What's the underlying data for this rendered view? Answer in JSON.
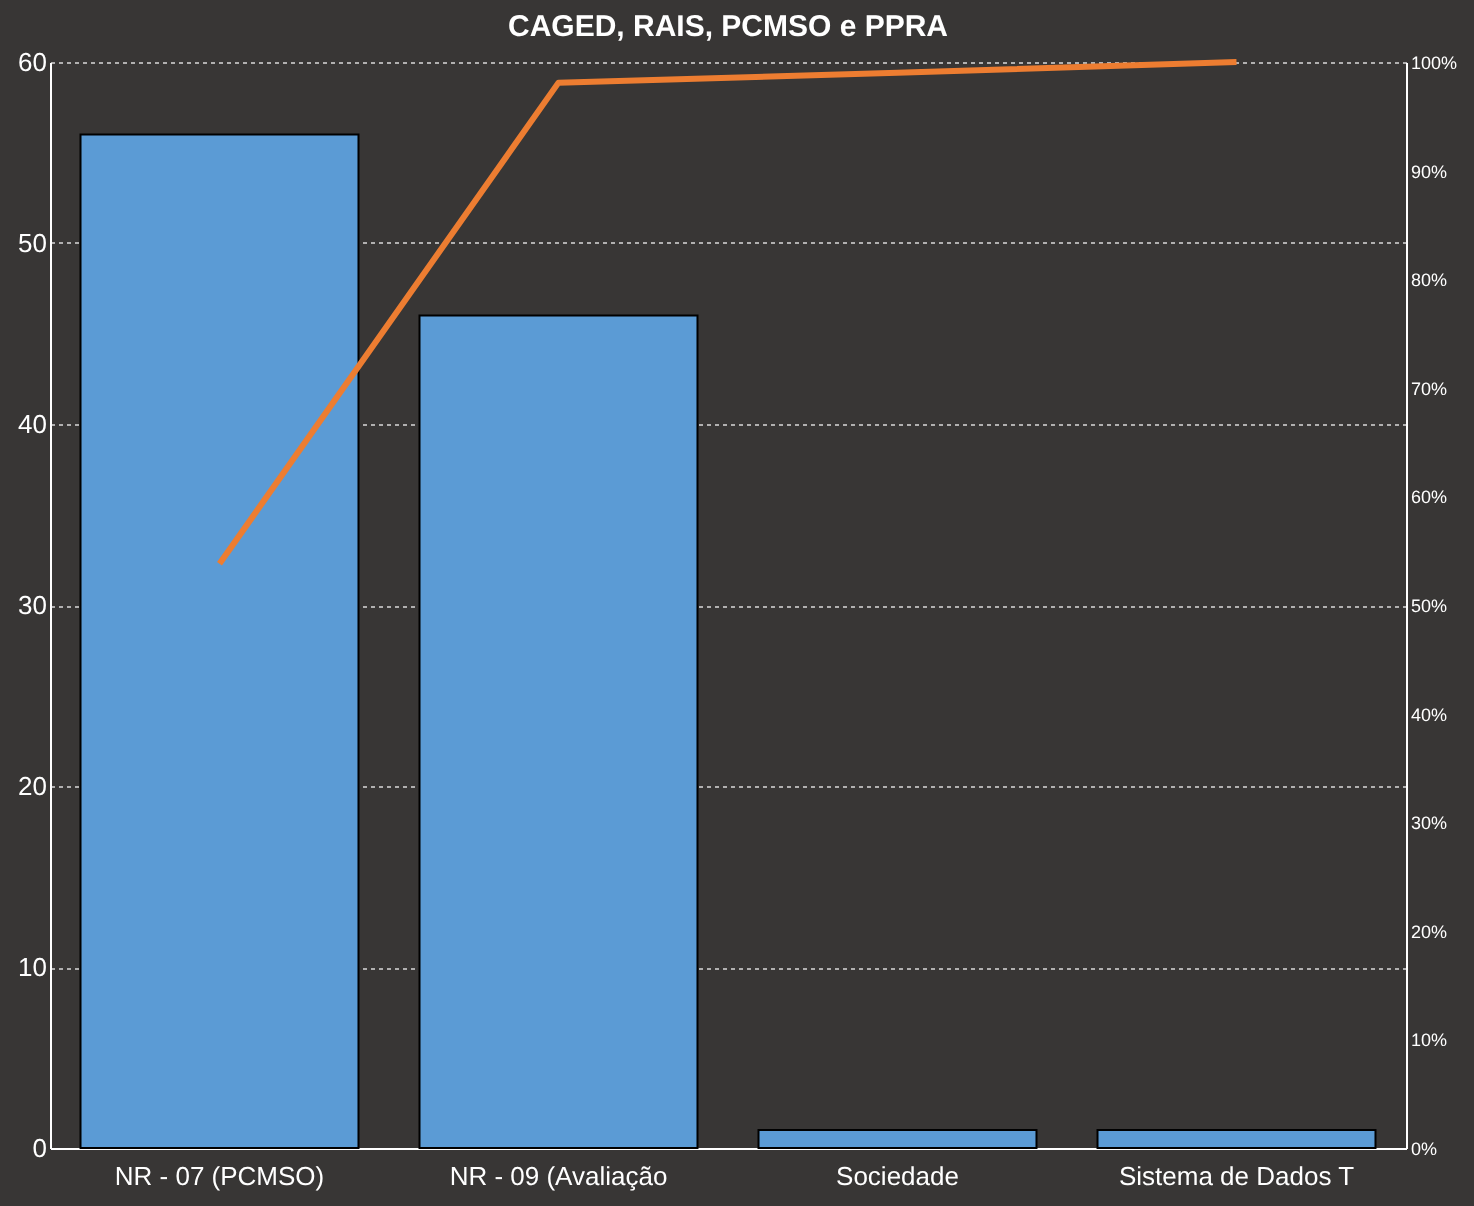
{
  "chart_data": {
    "type": "bar",
    "title": "CAGED, RAIS, PCMSO e PPRA",
    "categories": [
      "NR - 07 (PCMSO)",
      "NR - 09 (Avaliação",
      "Sociedade",
      "Sistema de Dados T"
    ],
    "series": [
      {
        "color": "#5b9bd5",
        "values": [
          56,
          46,
          1,
          1
        ]
      },
      {
        "type": "line",
        "axis": "y2",
        "color": "#ed7d31",
        "values": [
          53.8,
          98.1,
          99,
          100
        ]
      }
    ],
    "ylim": [
      0,
      60
    ],
    "yticks": [
      0,
      10,
      20,
      30,
      40,
      50,
      60
    ],
    "y2lim": [
      0,
      100
    ],
    "y2ticks": [
      {
        "value": 0,
        "label": "0%"
      },
      {
        "value": 10,
        "label": "10%"
      },
      {
        "value": 20,
        "label": "20%"
      },
      {
        "value": 30,
        "label": "30%"
      },
      {
        "value": 40,
        "label": "40%"
      },
      {
        "value": 50,
        "label": "50%"
      },
      {
        "value": 60,
        "label": "60%"
      },
      {
        "value": 70,
        "label": "70%"
      },
      {
        "value": 80,
        "label": "80%"
      },
      {
        "value": 90,
        "label": "90%"
      },
      {
        "value": 100,
        "label": "100%"
      }
    ],
    "grid": "y"
  }
}
